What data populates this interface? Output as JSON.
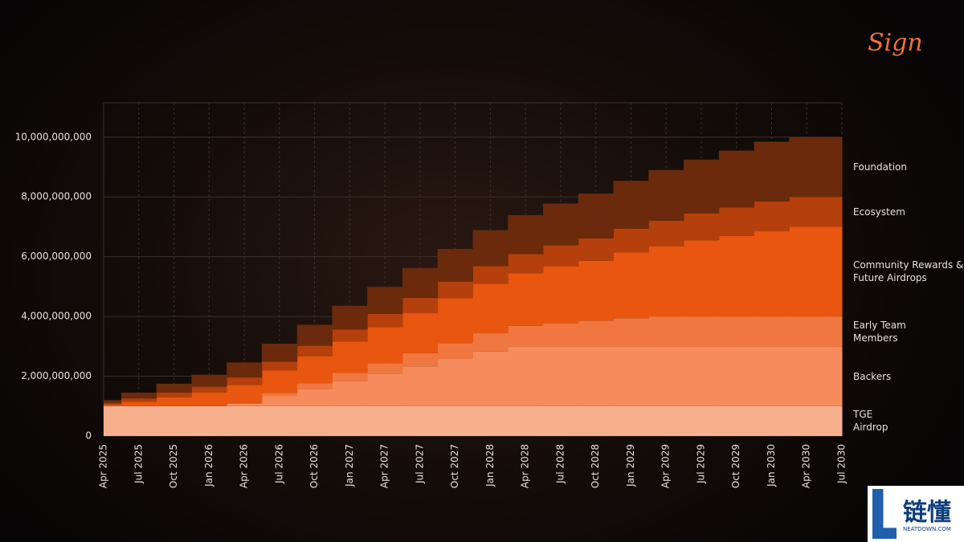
{
  "brand": "Sign",
  "watermark": {
    "title": "链懂",
    "url": "NEATDOWN.COM"
  },
  "chart_data": {
    "type": "stacked-step-area",
    "categories": [
      "Apr 2025",
      "Jul 2025",
      "Oct 2025",
      "Jan 2026",
      "Apr 2026",
      "Jul 2026",
      "Oct 2026",
      "Jan 2027",
      "Apr 2027",
      "Jul 2027",
      "Oct 2027",
      "Jan 2028",
      "Apr 2028",
      "Jul 2028",
      "Oct 2028",
      "Jan 2029",
      "Apr 2029",
      "Jul 2029",
      "Oct 2029",
      "Jan 2030",
      "Apr 2030",
      "Jul 2030"
    ],
    "ylim": [
      0,
      11150000000
    ],
    "yticks": [
      0,
      {
        "value": 2000000000,
        "label": "2,000,000,000"
      },
      {
        "value": 4000000000,
        "label": "4,000,000,000"
      },
      {
        "value": 6000000000,
        "label": "6,000,000,000"
      },
      {
        "value": 8000000000,
        "label": "8,000,000,000"
      },
      {
        "value": 10000000000,
        "label": "10,000,000,000"
      }
    ],
    "grid": true,
    "series": [
      {
        "name": "TGE Airdrop",
        "color": "#f7b08e",
        "values": [
          1000000000,
          1000000000,
          1000000000,
          1000000000,
          1000000000,
          1000000000,
          1000000000,
          1000000000,
          1000000000,
          1000000000,
          1000000000,
          1000000000,
          1000000000,
          1000000000,
          1000000000,
          1000000000,
          1000000000,
          1000000000,
          1000000000,
          1000000000,
          1000000000,
          1000000000
        ]
      },
      {
        "name": "Backers",
        "color": "#f68c5c",
        "values": [
          0,
          0,
          0,
          0,
          80000000,
          330000000,
          580000000,
          830000000,
          1080000000,
          1330000000,
          1580000000,
          1830000000,
          2000000000,
          2000000000,
          2000000000,
          2000000000,
          2000000000,
          2000000000,
          2000000000,
          2000000000,
          2000000000,
          2000000000
        ]
      },
      {
        "name": "Early Team Members",
        "color": "#f07840",
        "values": [
          0,
          0,
          0,
          0,
          30000000,
          110000000,
          190000000,
          280000000,
          360000000,
          440000000,
          530000000,
          610000000,
          690000000,
          780000000,
          860000000,
          940000000,
          1000000000,
          1000000000,
          1000000000,
          1000000000,
          1000000000,
          1000000000
        ]
      },
      {
        "name": "Community Rewards & Future Airdrops",
        "color": "#e8560f",
        "values": [
          50000000,
          150000000,
          300000000,
          450000000,
          600000000,
          750000000,
          900000000,
          1050000000,
          1200000000,
          1350000000,
          1500000000,
          1650000000,
          1750000000,
          1900000000,
          2000000000,
          2200000000,
          2350000000,
          2550000000,
          2700000000,
          2850000000,
          3000000000,
          3000000000
        ]
      },
      {
        "name": "Ecosystem",
        "color": "#b5400b",
        "values": [
          50000000,
          100000000,
          150000000,
          200000000,
          250000000,
          300000000,
          350000000,
          400000000,
          450000000,
          500000000,
          550000000,
          600000000,
          650000000,
          700000000,
          750000000,
          800000000,
          850000000,
          900000000,
          950000000,
          1000000000,
          1000000000,
          1000000000
        ]
      },
      {
        "name": "Foundation",
        "color": "#6b2a0c",
        "values": [
          100000000,
          200000000,
          300000000,
          400000000,
          500000000,
          600000000,
          700000000,
          800000000,
          900000000,
          1000000000,
          1100000000,
          1200000000,
          1300000000,
          1400000000,
          1500000000,
          1600000000,
          1700000000,
          1800000000,
          1900000000,
          2000000000,
          2000000000,
          2000000000
        ]
      }
    ]
  }
}
